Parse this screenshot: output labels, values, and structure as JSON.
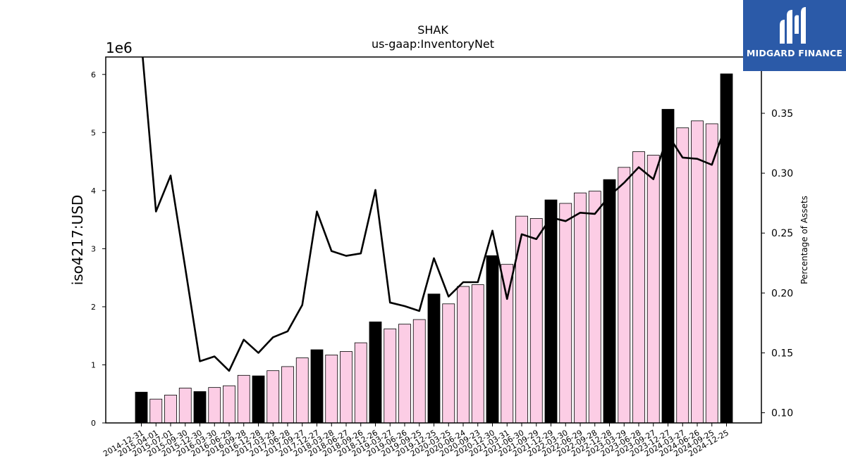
{
  "brand": {
    "name": "MIDGARD FINANCE",
    "logo_icon": "midgard-m-logo-icon",
    "color": "#2b5aa8"
  },
  "chart_data": {
    "type": "bar",
    "title": "SHAK",
    "subtitle": "us-gaap:InventoryNet",
    "ylabel": "iso4217:USD",
    "y2label": "Percentage of Assets",
    "y_scale_label": "1e6",
    "ylim": [
      0,
      6.3
    ],
    "y2lim": [
      0.0915,
      0.397
    ],
    "y_ticks": [
      "0",
      "1",
      "2",
      "3",
      "4",
      "5",
      "6"
    ],
    "y2_ticks": [
      "0.10",
      "0.15",
      "0.20",
      "0.25",
      "0.30",
      "0.35"
    ],
    "colors": {
      "quarterly_bar": "#fccde5",
      "annual_bar": "#000000",
      "line": "#000000"
    },
    "categories": [
      "2014-12-31",
      "2015-04-01",
      "2015-07-01",
      "2015-09-30",
      "2015-12-30",
      "2016-03-30",
      "2016-06-29",
      "2016-09-28",
      "2016-12-28",
      "2017-03-29",
      "2017-06-28",
      "2017-09-27",
      "2017-12-27",
      "2018-03-28",
      "2018-06-27",
      "2018-09-26",
      "2018-12-26",
      "2019-03-27",
      "2019-06-26",
      "2019-09-25",
      "2019-12-25",
      "2020-03-25",
      "2020-06-24",
      "2020-09-23",
      "2020-12-30",
      "2021-03-31",
      "2021-06-30",
      "2021-09-29",
      "2021-12-29",
      "2022-03-30",
      "2022-06-29",
      "2022-09-28",
      "2022-12-28",
      "2023-03-29",
      "2023-06-28",
      "2023-09-27",
      "2023-12-27",
      "2024-03-27",
      "2024-06-26",
      "2024-09-25",
      "2024-12-25"
    ],
    "series": [
      {
        "kind": "bar",
        "values": [
          0.53,
          0.41,
          0.48,
          0.6,
          0.54,
          0.61,
          0.64,
          0.82,
          0.81,
          0.9,
          0.97,
          1.12,
          1.26,
          1.17,
          1.23,
          1.38,
          1.74,
          1.62,
          1.7,
          1.78,
          2.22,
          2.05,
          2.35,
          2.38,
          2.88,
          2.73,
          3.56,
          3.52,
          3.84,
          3.78,
          3.96,
          3.99,
          4.19,
          4.4,
          4.67,
          4.61,
          5.4,
          5.08,
          5.2,
          5.15,
          6.01
        ],
        "annual": [
          true,
          false,
          false,
          false,
          true,
          false,
          false,
          false,
          true,
          false,
          false,
          false,
          true,
          false,
          false,
          false,
          true,
          false,
          false,
          false,
          true,
          false,
          false,
          false,
          true,
          false,
          false,
          false,
          true,
          false,
          false,
          false,
          true,
          false,
          false,
          false,
          true,
          false,
          false,
          false,
          true
        ]
      },
      {
        "kind": "line",
        "axis": "right",
        "values": [
          0.41,
          0.268,
          0.298,
          0.221,
          0.143,
          0.147,
          0.135,
          0.161,
          0.15,
          0.163,
          0.168,
          0.19,
          0.268,
          0.235,
          0.231,
          0.233,
          0.286,
          0.192,
          0.189,
          0.185,
          0.229,
          0.197,
          0.209,
          0.209,
          0.252,
          0.195,
          0.249,
          0.245,
          0.263,
          0.26,
          0.267,
          0.266,
          0.281,
          0.292,
          0.305,
          0.295,
          0.332,
          0.313,
          0.312,
          0.307,
          0.342
        ]
      }
    ]
  }
}
